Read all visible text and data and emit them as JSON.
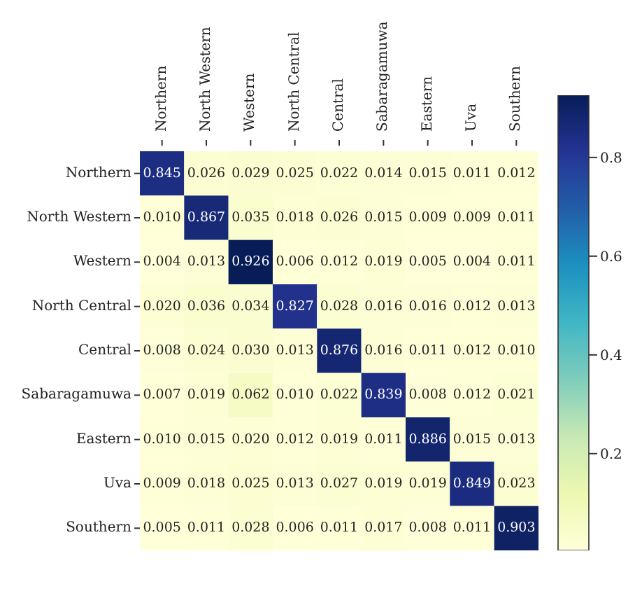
{
  "chart_data": {
    "type": "heatmap",
    "categories": [
      "Northern",
      "North Western",
      "Western",
      "North Central",
      "Central",
      "Sabaragamuwa",
      "Eastern",
      "Uva",
      "Southern"
    ],
    "y_categories": [
      "Northern",
      "North Western",
      "Western",
      "North Central",
      "Central",
      "Sabaragamuwa",
      "Eastern",
      "Uva",
      "Southern"
    ],
    "cells": [
      [
        0.845,
        0.026,
        0.029,
        0.025,
        0.022,
        0.014,
        0.015,
        0.011,
        0.012
      ],
      [
        0.01,
        0.867,
        0.035,
        0.018,
        0.026,
        0.015,
        0.009,
        0.009,
        0.011
      ],
      [
        0.004,
        0.013,
        0.926,
        0.006,
        0.012,
        0.019,
        0.005,
        0.004,
        0.011
      ],
      [
        0.02,
        0.036,
        0.034,
        0.827,
        0.028,
        0.016,
        0.016,
        0.012,
        0.013
      ],
      [
        0.008,
        0.024,
        0.03,
        0.013,
        0.876,
        0.016,
        0.011,
        0.012,
        0.01
      ],
      [
        0.007,
        0.019,
        0.062,
        0.01,
        0.022,
        0.839,
        0.008,
        0.012,
        0.021
      ],
      [
        0.01,
        0.015,
        0.02,
        0.012,
        0.019,
        0.011,
        0.886,
        0.015,
        0.013
      ],
      [
        0.009,
        0.018,
        0.025,
        0.013,
        0.027,
        0.019,
        0.019,
        0.849,
        0.023
      ],
      [
        0.005,
        0.011,
        0.028,
        0.006,
        0.011,
        0.017,
        0.008,
        0.011,
        0.903
      ]
    ],
    "cell_labels": [
      [
        "0.845",
        "0.026",
        "0.029",
        "0.025",
        "0.022",
        "0.014",
        "0.015",
        "0.011",
        "0.012"
      ],
      [
        "0.010",
        "0.867",
        "0.035",
        "0.018",
        "0.026",
        "0.015",
        "0.009",
        "0.009",
        "0.011"
      ],
      [
        "0.004",
        "0.013",
        "0.926",
        "0.006",
        "0.012",
        "0.019",
        "0.005",
        "0.004",
        "0.011"
      ],
      [
        "0.020",
        "0.036",
        "0.034",
        "0.827",
        "0.028",
        "0.016",
        "0.016",
        "0.012",
        "0.013"
      ],
      [
        "0.008",
        "0.024",
        "0.030",
        "0.013",
        "0.876",
        "0.016",
        "0.011",
        "0.012",
        "0.010"
      ],
      [
        "0.007",
        "0.019",
        "0.062",
        "0.010",
        "0.022",
        "0.839",
        "0.008",
        "0.012",
        "0.021"
      ],
      [
        "0.010",
        "0.015",
        "0.020",
        "0.012",
        "0.019",
        "0.011",
        "0.886",
        "0.015",
        "0.013"
      ],
      [
        "0.009",
        "0.018",
        "0.025",
        "0.013",
        "0.027",
        "0.019",
        "0.019",
        "0.849",
        "0.023"
      ],
      [
        "0.005",
        "0.011",
        "0.028",
        "0.006",
        "0.011",
        "0.017",
        "0.008",
        "0.011",
        "0.903"
      ]
    ],
    "clim": [
      0.004,
      0.926
    ],
    "cticks": [
      0.2,
      0.4,
      0.6,
      0.8
    ]
  }
}
